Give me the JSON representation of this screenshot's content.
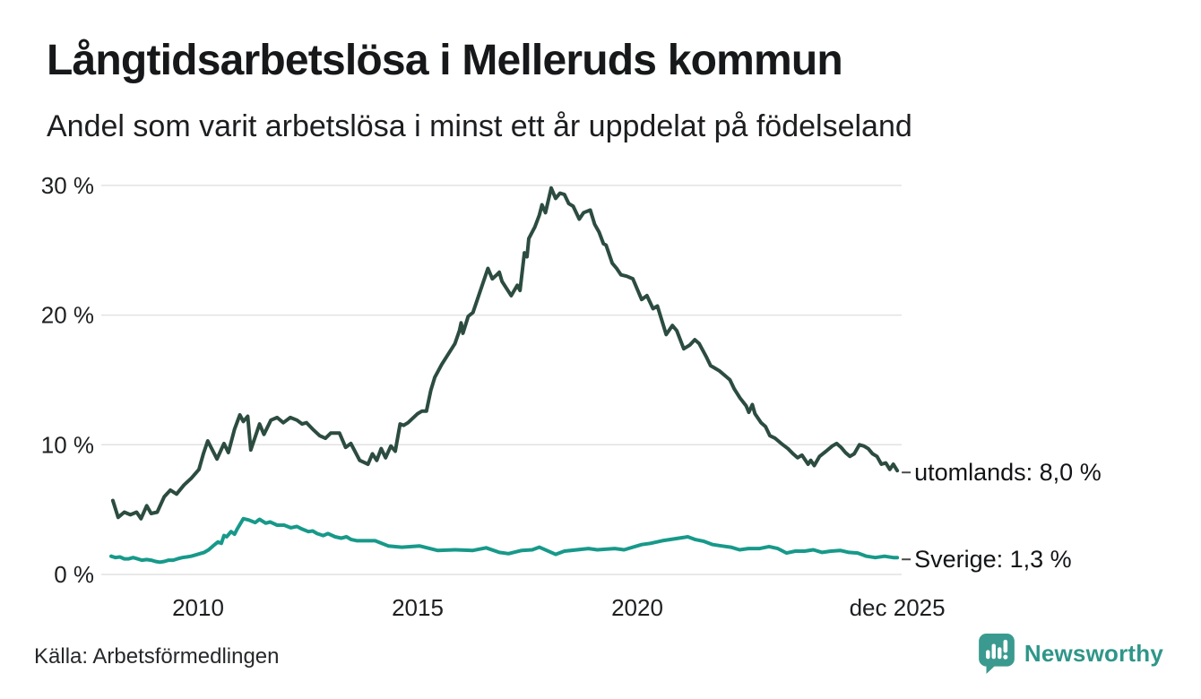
{
  "header": {
    "title": "Långtidsarbetslösa i Melleruds kommun",
    "subtitle": "Andel som varit arbetslösa i minst ett år uppdelat på födelseland"
  },
  "chart_data": {
    "type": "line",
    "title": "Långtidsarbetslösa i Melleruds kommun",
    "subtitle": "Andel som varit arbetslösa i minst ett år uppdelat på födelseland",
    "grid": "horizontal",
    "legend_position": "line-end-labels",
    "x_axis": {
      "range": [
        2008.0,
        2025.95
      ],
      "ticks": [
        {
          "label": "2010",
          "year": 2010
        },
        {
          "label": "2015",
          "year": 2015
        },
        {
          "label": "2020",
          "year": 2020
        },
        {
          "label": "dec 2025",
          "year": 2025.92
        }
      ]
    },
    "y_axis": {
      "unit": "%",
      "range": [
        0,
        30
      ],
      "ticks": [
        {
          "label": "0 %",
          "value": 0
        },
        {
          "label": "10 %",
          "value": 10
        },
        {
          "label": "20 %",
          "value": 20
        },
        {
          "label": "30 %",
          "value": 30
        }
      ]
    },
    "series": [
      {
        "name": "utomlands",
        "color": "#2c4c40",
        "end_label": "utomlands: 8,0 %",
        "last_value": "8,0 %",
        "points": [
          [
            2008.06,
            5.7
          ],
          [
            2008.18,
            4.4
          ],
          [
            2008.32,
            4.8
          ],
          [
            2008.46,
            4.6
          ],
          [
            2008.6,
            4.8
          ],
          [
            2008.7,
            4.3
          ],
          [
            2008.83,
            5.3
          ],
          [
            2008.93,
            4.7
          ],
          [
            2009.07,
            4.8
          ],
          [
            2009.23,
            6.0
          ],
          [
            2009.37,
            6.5
          ],
          [
            2009.51,
            6.2
          ],
          [
            2009.68,
            6.9
          ],
          [
            2009.84,
            7.4
          ],
          [
            2010.02,
            8.1
          ],
          [
            2010.12,
            9.3
          ],
          [
            2010.22,
            10.3
          ],
          [
            2010.43,
            8.9
          ],
          [
            2010.59,
            10.1
          ],
          [
            2010.69,
            9.4
          ],
          [
            2010.83,
            11.2
          ],
          [
            2010.95,
            12.3
          ],
          [
            2011.03,
            11.8
          ],
          [
            2011.13,
            12.2
          ],
          [
            2011.2,
            9.6
          ],
          [
            2011.4,
            11.6
          ],
          [
            2011.5,
            10.8
          ],
          [
            2011.66,
            11.9
          ],
          [
            2011.8,
            12.1
          ],
          [
            2011.94,
            11.7
          ],
          [
            2012.1,
            12.1
          ],
          [
            2012.25,
            11.9
          ],
          [
            2012.37,
            11.6
          ],
          [
            2012.47,
            11.7
          ],
          [
            2012.61,
            11.2
          ],
          [
            2012.77,
            10.7
          ],
          [
            2012.9,
            10.5
          ],
          [
            2013.02,
            10.9
          ],
          [
            2013.22,
            10.9
          ],
          [
            2013.36,
            9.8
          ],
          [
            2013.48,
            10.1
          ],
          [
            2013.68,
            8.8
          ],
          [
            2013.87,
            8.5
          ],
          [
            2013.97,
            9.3
          ],
          [
            2014.07,
            8.8
          ],
          [
            2014.17,
            9.7
          ],
          [
            2014.27,
            9.0
          ],
          [
            2014.39,
            9.9
          ],
          [
            2014.49,
            9.5
          ],
          [
            2014.6,
            11.6
          ],
          [
            2014.68,
            11.5
          ],
          [
            2014.78,
            11.7
          ],
          [
            2015.0,
            12.4
          ],
          [
            2015.1,
            12.6
          ],
          [
            2015.2,
            12.6
          ],
          [
            2015.3,
            14.2
          ],
          [
            2015.39,
            15.2
          ],
          [
            2015.55,
            16.2
          ],
          [
            2015.85,
            17.8
          ],
          [
            2015.95,
            18.8
          ],
          [
            2015.99,
            19.4
          ],
          [
            2016.03,
            18.6
          ],
          [
            2016.15,
            19.9
          ],
          [
            2016.26,
            20.2
          ],
          [
            2016.6,
            23.6
          ],
          [
            2016.7,
            22.8
          ],
          [
            2016.8,
            23.1
          ],
          [
            2016.86,
            23.3
          ],
          [
            2016.92,
            22.6
          ],
          [
            2017.13,
            21.5
          ],
          [
            2017.27,
            22.3
          ],
          [
            2017.33,
            21.9
          ],
          [
            2017.43,
            24.8
          ],
          [
            2017.49,
            24.5
          ],
          [
            2017.53,
            25.9
          ],
          [
            2017.67,
            26.8
          ],
          [
            2017.77,
            27.7
          ],
          [
            2017.83,
            28.5
          ],
          [
            2017.91,
            27.9
          ],
          [
            2018.04,
            29.8
          ],
          [
            2018.14,
            29.0
          ],
          [
            2018.24,
            29.4
          ],
          [
            2018.34,
            29.3
          ],
          [
            2018.44,
            28.6
          ],
          [
            2018.54,
            28.4
          ],
          [
            2018.68,
            27.4
          ],
          [
            2018.78,
            27.9
          ],
          [
            2018.93,
            28.1
          ],
          [
            2019.03,
            27.0
          ],
          [
            2019.13,
            26.4
          ],
          [
            2019.23,
            25.5
          ],
          [
            2019.29,
            25.4
          ],
          [
            2019.43,
            24.0
          ],
          [
            2019.53,
            23.6
          ],
          [
            2019.63,
            23.1
          ],
          [
            2019.76,
            23.0
          ],
          [
            2019.9,
            22.8
          ],
          [
            2020.1,
            21.2
          ],
          [
            2020.22,
            21.5
          ],
          [
            2020.36,
            20.5
          ],
          [
            2020.46,
            20.7
          ],
          [
            2020.66,
            18.5
          ],
          [
            2020.8,
            19.2
          ],
          [
            2020.9,
            18.8
          ],
          [
            2021.06,
            17.4
          ],
          [
            2021.2,
            17.7
          ],
          [
            2021.31,
            18.1
          ],
          [
            2021.41,
            17.8
          ],
          [
            2021.57,
            16.8
          ],
          [
            2021.67,
            16.1
          ],
          [
            2021.77,
            15.9
          ],
          [
            2021.87,
            15.7
          ],
          [
            2022.01,
            15.3
          ],
          [
            2022.11,
            15.0
          ],
          [
            2022.21,
            14.3
          ],
          [
            2022.34,
            13.6
          ],
          [
            2022.48,
            13.0
          ],
          [
            2022.54,
            12.5
          ],
          [
            2022.62,
            13.1
          ],
          [
            2022.68,
            12.4
          ],
          [
            2022.82,
            11.7
          ],
          [
            2022.92,
            11.4
          ],
          [
            2023.02,
            10.7
          ],
          [
            2023.14,
            10.5
          ],
          [
            2023.28,
            10.1
          ],
          [
            2023.43,
            9.7
          ],
          [
            2023.55,
            9.3
          ],
          [
            2023.65,
            9.0
          ],
          [
            2023.75,
            9.2
          ],
          [
            2023.89,
            8.5
          ],
          [
            2023.95,
            8.8
          ],
          [
            2024.03,
            8.4
          ],
          [
            2024.15,
            9.1
          ],
          [
            2024.3,
            9.5
          ],
          [
            2024.44,
            9.9
          ],
          [
            2024.54,
            10.1
          ],
          [
            2024.64,
            9.8
          ],
          [
            2024.74,
            9.4
          ],
          [
            2024.84,
            9.1
          ],
          [
            2024.94,
            9.3
          ],
          [
            2025.06,
            10.0
          ],
          [
            2025.16,
            9.9
          ],
          [
            2025.26,
            9.7
          ],
          [
            2025.36,
            9.3
          ],
          [
            2025.46,
            9.1
          ],
          [
            2025.56,
            8.5
          ],
          [
            2025.66,
            8.6
          ],
          [
            2025.75,
            8.1
          ],
          [
            2025.83,
            8.5
          ],
          [
            2025.92,
            8.0
          ]
        ]
      },
      {
        "name": "Sverige",
        "color": "#17998a",
        "end_label": "Sverige: 1,3 %",
        "last_value": "1,3 %",
        "points": [
          [
            2008.02,
            1.4
          ],
          [
            2008.12,
            1.3
          ],
          [
            2008.22,
            1.35
          ],
          [
            2008.32,
            1.2
          ],
          [
            2008.42,
            1.2
          ],
          [
            2008.52,
            1.3
          ],
          [
            2008.62,
            1.2
          ],
          [
            2008.72,
            1.1
          ],
          [
            2008.83,
            1.15
          ],
          [
            2008.93,
            1.1
          ],
          [
            2009.03,
            1.0
          ],
          [
            2009.13,
            0.95
          ],
          [
            2009.23,
            1.0
          ],
          [
            2009.33,
            1.1
          ],
          [
            2009.43,
            1.1
          ],
          [
            2009.53,
            1.2
          ],
          [
            2009.64,
            1.3
          ],
          [
            2009.74,
            1.35
          ],
          [
            2009.84,
            1.4
          ],
          [
            2009.94,
            1.5
          ],
          [
            2010.04,
            1.6
          ],
          [
            2010.14,
            1.7
          ],
          [
            2010.24,
            1.9
          ],
          [
            2010.34,
            2.2
          ],
          [
            2010.45,
            2.5
          ],
          [
            2010.53,
            2.4
          ],
          [
            2010.59,
            3.0
          ],
          [
            2010.65,
            2.9
          ],
          [
            2010.75,
            3.3
          ],
          [
            2010.83,
            3.1
          ],
          [
            2010.89,
            3.5
          ],
          [
            2011.03,
            4.3
          ],
          [
            2011.15,
            4.2
          ],
          [
            2011.3,
            4.0
          ],
          [
            2011.4,
            4.25
          ],
          [
            2011.54,
            3.95
          ],
          [
            2011.64,
            4.05
          ],
          [
            2011.8,
            3.8
          ],
          [
            2011.96,
            3.8
          ],
          [
            2012.11,
            3.6
          ],
          [
            2012.25,
            3.7
          ],
          [
            2012.37,
            3.5
          ],
          [
            2012.51,
            3.3
          ],
          [
            2012.61,
            3.35
          ],
          [
            2012.71,
            3.15
          ],
          [
            2012.85,
            3.0
          ],
          [
            2012.96,
            3.15
          ],
          [
            2013.12,
            2.9
          ],
          [
            2013.26,
            2.8
          ],
          [
            2013.38,
            2.9
          ],
          [
            2013.48,
            2.7
          ],
          [
            2013.62,
            2.6
          ],
          [
            2014.03,
            2.6
          ],
          [
            2014.33,
            2.2
          ],
          [
            2014.64,
            2.1
          ],
          [
            2015.04,
            2.2
          ],
          [
            2015.45,
            1.85
          ],
          [
            2015.85,
            1.9
          ],
          [
            2016.26,
            1.85
          ],
          [
            2016.56,
            2.05
          ],
          [
            2016.86,
            1.7
          ],
          [
            2017.07,
            1.6
          ],
          [
            2017.37,
            1.85
          ],
          [
            2017.61,
            1.9
          ],
          [
            2017.77,
            2.1
          ],
          [
            2018.14,
            1.55
          ],
          [
            2018.34,
            1.8
          ],
          [
            2018.89,
            2.0
          ],
          [
            2019.09,
            1.9
          ],
          [
            2019.49,
            2.0
          ],
          [
            2019.7,
            1.9
          ],
          [
            2020.1,
            2.3
          ],
          [
            2020.3,
            2.4
          ],
          [
            2020.57,
            2.6
          ],
          [
            2020.77,
            2.7
          ],
          [
            2021.15,
            2.9
          ],
          [
            2021.31,
            2.7
          ],
          [
            2021.52,
            2.55
          ],
          [
            2021.72,
            2.3
          ],
          [
            2021.92,
            2.2
          ],
          [
            2022.13,
            2.1
          ],
          [
            2022.33,
            1.9
          ],
          [
            2022.53,
            2.0
          ],
          [
            2022.79,
            2.0
          ],
          [
            2023.0,
            2.15
          ],
          [
            2023.2,
            2.0
          ],
          [
            2023.4,
            1.65
          ],
          [
            2023.6,
            1.8
          ],
          [
            2023.81,
            1.8
          ],
          [
            2024.01,
            1.9
          ],
          [
            2024.21,
            1.7
          ],
          [
            2024.41,
            1.8
          ],
          [
            2024.62,
            1.85
          ],
          [
            2024.82,
            1.7
          ],
          [
            2025.02,
            1.65
          ],
          [
            2025.22,
            1.4
          ],
          [
            2025.42,
            1.3
          ],
          [
            2025.63,
            1.4
          ],
          [
            2025.83,
            1.3
          ],
          [
            2025.92,
            1.3
          ]
        ]
      }
    ]
  },
  "footer": {
    "source": "Källa: Arbetsförmedlingen",
    "brand": "Newsworthy"
  },
  "colors": {
    "background": "#ffffff",
    "utomlands_line": "#2c4c40",
    "sverige_line": "#17998a",
    "gridline": "#e2e2e2",
    "brand_teal": "#2e9689",
    "brand_icon": "#3b9a8f"
  }
}
